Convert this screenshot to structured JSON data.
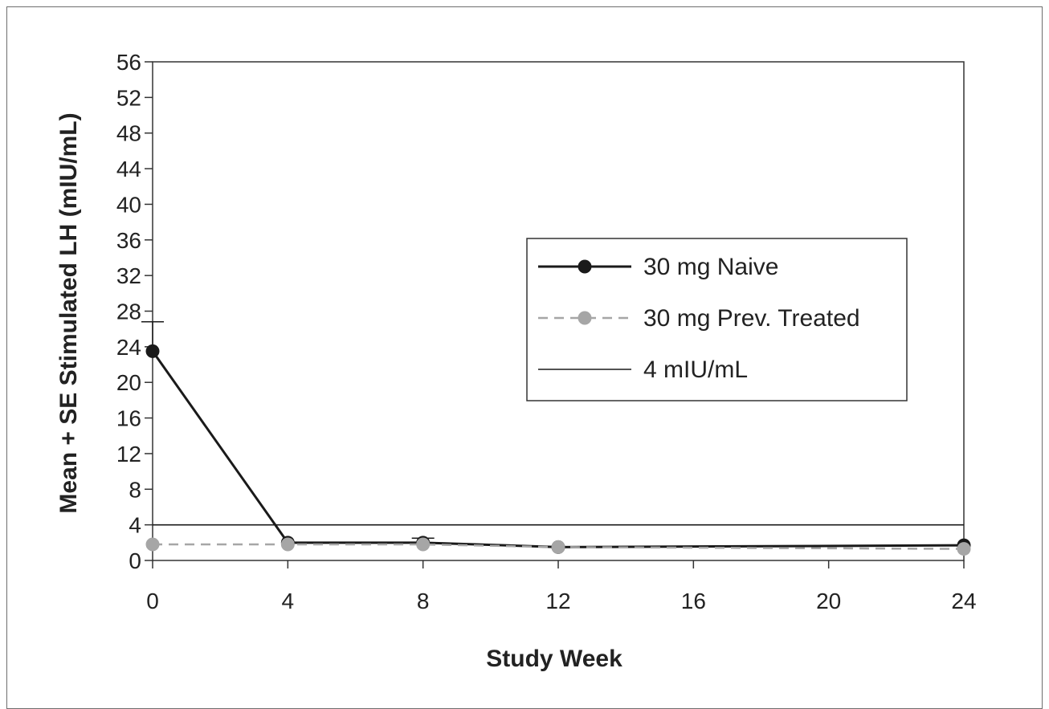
{
  "chart_data": {
    "type": "line",
    "title": "",
    "xlabel": "Study Week",
    "ylabel": "Mean + SE Stimulated LH (mIU/mL)",
    "xlim": [
      0,
      24
    ],
    "ylim": [
      0,
      56
    ],
    "x_ticks": [
      0,
      4,
      8,
      12,
      16,
      20,
      24
    ],
    "y_ticks": [
      0,
      4,
      8,
      12,
      16,
      20,
      24,
      28,
      32,
      36,
      40,
      44,
      48,
      52,
      56
    ],
    "grid": false,
    "legend_position": "center-right",
    "series": [
      {
        "name": "30 mg Naive",
        "color": "#1a1a1a",
        "style": "solid",
        "marker": "circle",
        "x": [
          0,
          4,
          8,
          12,
          24
        ],
        "y": [
          23.5,
          2.0,
          2.0,
          1.5,
          1.7
        ],
        "se_upper": [
          26.8,
          null,
          2.5,
          null,
          null
        ]
      },
      {
        "name": "30 mg Prev. Treated",
        "color": "#a6a6a6",
        "style": "dashed",
        "marker": "circle",
        "x": [
          0,
          4,
          8,
          12,
          24
        ],
        "y": [
          1.8,
          1.8,
          1.8,
          1.5,
          1.3
        ]
      },
      {
        "name": "4 mIU/mL",
        "color": "#1a1a1a",
        "style": "solid",
        "marker": "none",
        "x": [
          0,
          24
        ],
        "y": [
          4,
          4
        ]
      }
    ]
  }
}
